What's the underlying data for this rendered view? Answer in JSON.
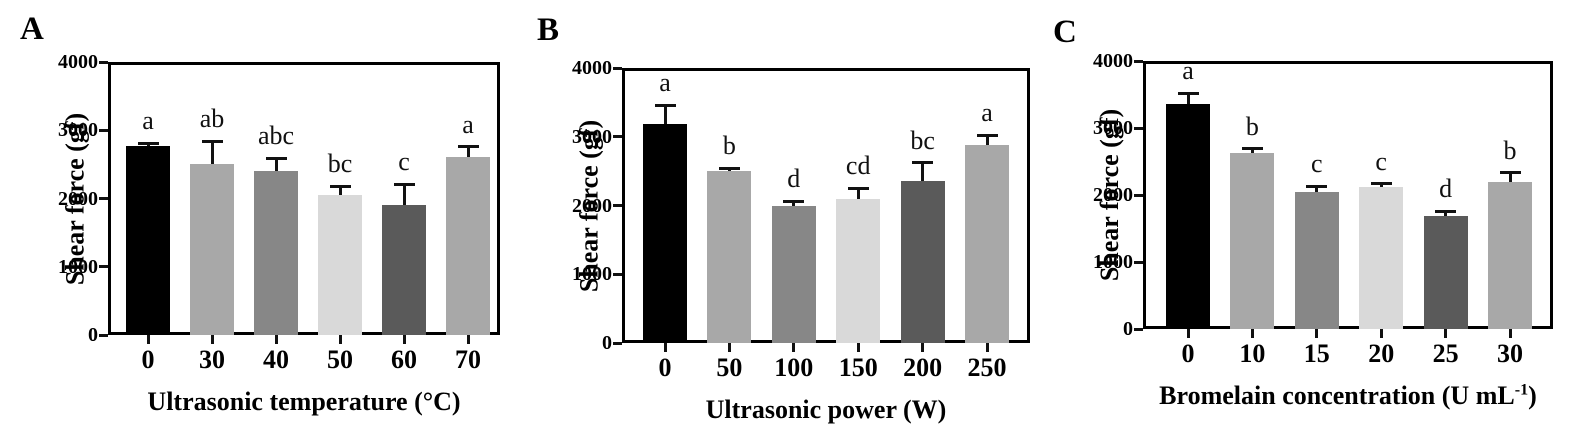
{
  "figure": {
    "background": "#ffffff",
    "axis_color": "#000000",
    "error_bar_color": "#111111",
    "bar_colors": [
      "#000000",
      "#a8a8a8",
      "#878787",
      "#d9d9d9",
      "#5a5a5a",
      "#a8a8a8"
    ]
  },
  "chart_data": [
    {
      "type": "bar",
      "panel_label": "A",
      "title": "",
      "xlabel": "Ultrasonic temperature (°C)",
      "xlabel_parts": [
        {
          "t": "Ultrasonic temperature (°C)"
        }
      ],
      "ylabel": "Shear force (gf)",
      "categories": [
        "0",
        "30",
        "40",
        "50",
        "60",
        "70"
      ],
      "values": [
        2770,
        2510,
        2400,
        2050,
        1910,
        2610
      ],
      "errors": [
        40,
        330,
        190,
        130,
        300,
        150
      ],
      "sig_letters": [
        "a",
        "ab",
        "abc",
        "bc",
        "c",
        "a"
      ],
      "ylim": [
        0,
        4000
      ],
      "yticks": [
        "0",
        "1000",
        "2000",
        "3000",
        "4000"
      ],
      "grid": false,
      "legend": "none"
    },
    {
      "type": "bar",
      "panel_label": "B",
      "title": "",
      "xlabel": "Ultrasonic power (W)",
      "xlabel_parts": [
        {
          "t": "Ultrasonic power (W)"
        }
      ],
      "ylabel": "Shear force (gf)",
      "categories": [
        "0",
        "50",
        "100",
        "150",
        "200",
        "250"
      ],
      "values": [
        3190,
        2500,
        1990,
        2100,
        2360,
        2880
      ],
      "errors": [
        270,
        40,
        70,
        150,
        260,
        140
      ],
      "sig_letters": [
        "a",
        "b",
        "d",
        "cd",
        "bc",
        "a"
      ],
      "ylim": [
        0,
        4000
      ],
      "yticks": [
        "0",
        "1000",
        "2000",
        "3000",
        "4000"
      ],
      "grid": false,
      "legend": "none"
    },
    {
      "type": "bar",
      "panel_label": "C",
      "title": "",
      "xlabel": "Bromelain concentration (U mL⁻¹)",
      "xlabel_parts": [
        {
          "t": "Bromelain concentration (U mL"
        },
        {
          "t": "-1",
          "sup": true
        },
        {
          "t": ")"
        }
      ],
      "ylabel": "Shear force (gf)",
      "categories": [
        "0",
        "10",
        "15",
        "20",
        "25",
        "30"
      ],
      "values": [
        3360,
        2620,
        2050,
        2120,
        1680,
        2200
      ],
      "errors": [
        160,
        70,
        80,
        50,
        80,
        130
      ],
      "sig_letters": [
        "a",
        "b",
        "c",
        "c",
        "d",
        "b"
      ],
      "ylim": [
        0,
        4000
      ],
      "yticks": [
        "0",
        "1000",
        "2000",
        "3000",
        "4000"
      ],
      "grid": false,
      "legend": "none"
    }
  ]
}
